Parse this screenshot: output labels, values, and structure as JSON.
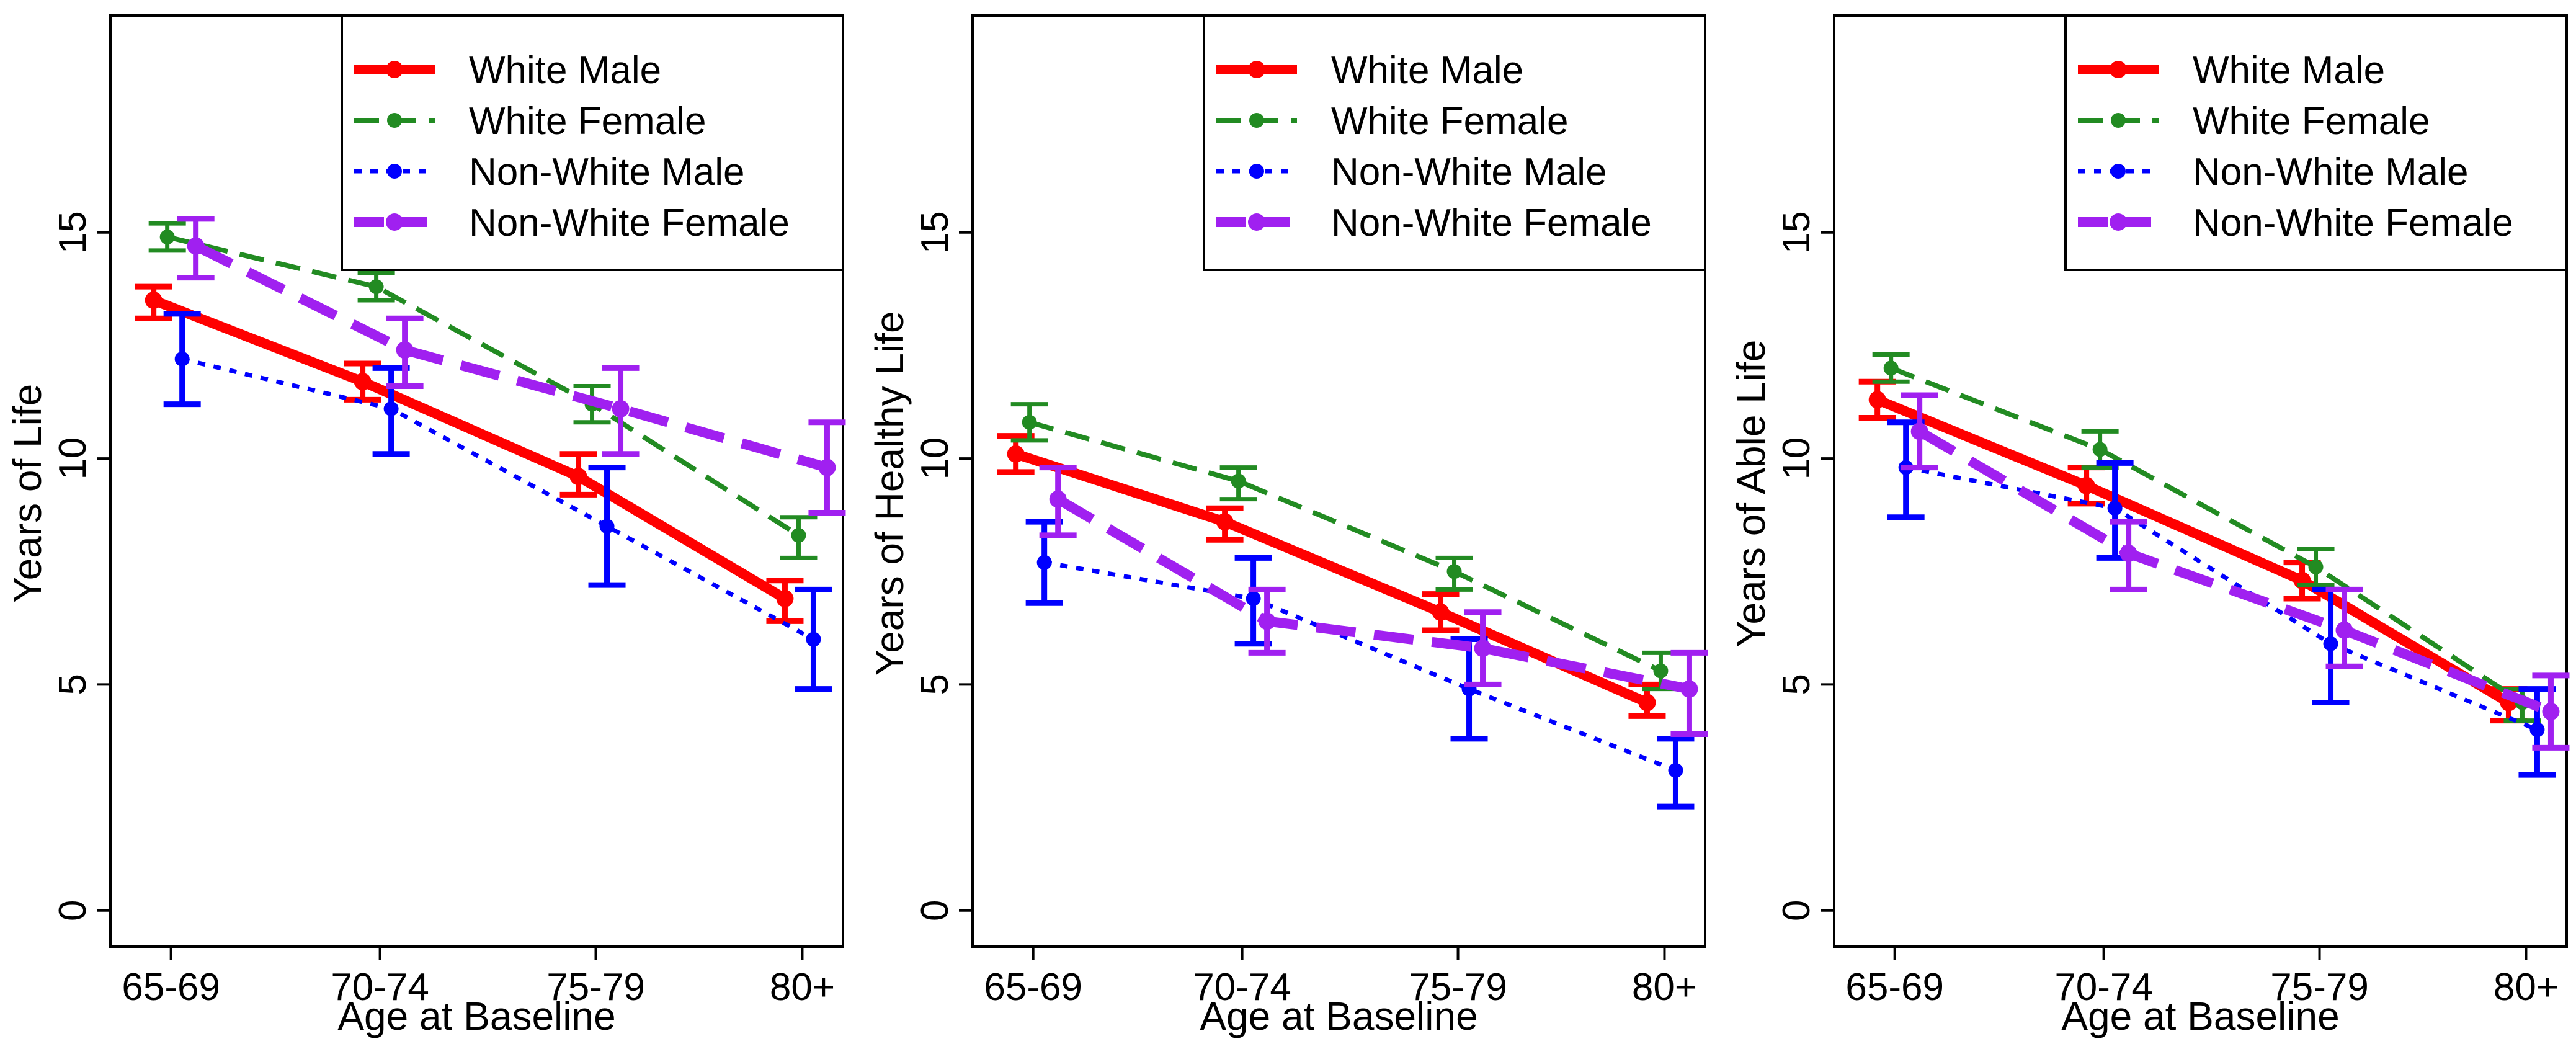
{
  "colors": {
    "white_male": "#ff0000",
    "white_female": "#228b22",
    "nonwhite_male": "#0000ff",
    "nonwhite_female": "#a020f0"
  },
  "chart_data": [
    {
      "type": "line",
      "title": "",
      "xlabel": "Age at Baseline",
      "ylabel": "Years of Life",
      "categories": [
        "65-69",
        "70-74",
        "75-79",
        "80+"
      ],
      "ylim": [
        -0.8,
        19.8
      ],
      "yticks": [
        "0",
        "5",
        "10",
        "15"
      ],
      "legend_position": "top-right",
      "series": [
        {
          "name": "White Male",
          "values": [
            13.5,
            11.7,
            9.6,
            6.9
          ],
          "ci_low": [
            13.1,
            11.3,
            9.2,
            6.4
          ],
          "ci_high": [
            13.8,
            12.1,
            10.1,
            7.3
          ]
        },
        {
          "name": "White Female",
          "values": [
            14.9,
            13.8,
            11.2,
            8.3
          ],
          "ci_low": [
            14.6,
            13.5,
            10.8,
            7.8
          ],
          "ci_high": [
            15.2,
            14.1,
            11.6,
            8.7
          ]
        },
        {
          "name": "Non-White Male",
          "values": [
            12.2,
            11.1,
            8.5,
            6.0
          ],
          "ci_low": [
            11.2,
            10.1,
            7.2,
            4.9
          ],
          "ci_high": [
            13.2,
            12.0,
            9.8,
            7.1
          ]
        },
        {
          "name": "Non-White Female",
          "values": [
            14.7,
            12.4,
            11.1,
            9.8
          ],
          "ci_low": [
            14.0,
            11.6,
            10.1,
            8.8
          ],
          "ci_high": [
            15.3,
            13.1,
            12.0,
            10.8
          ]
        }
      ]
    },
    {
      "type": "line",
      "title": "",
      "xlabel": "Age at Baseline",
      "ylabel": "Years of Healthy Life",
      "categories": [
        "65-69",
        "70-74",
        "75-79",
        "80+"
      ],
      "ylim": [
        -0.8,
        19.8
      ],
      "yticks": [
        "0",
        "5",
        "10",
        "15"
      ],
      "legend_position": "top-right",
      "series": [
        {
          "name": "White Male",
          "values": [
            10.1,
            8.6,
            6.6,
            4.6
          ],
          "ci_low": [
            9.7,
            8.2,
            6.2,
            4.3
          ],
          "ci_high": [
            10.5,
            8.9,
            7.0,
            5.0
          ]
        },
        {
          "name": "White Female",
          "values": [
            10.8,
            9.5,
            7.5,
            5.3
          ],
          "ci_low": [
            10.4,
            9.1,
            7.1,
            4.9
          ],
          "ci_high": [
            11.2,
            9.8,
            7.8,
            5.7
          ]
        },
        {
          "name": "Non-White Male",
          "values": [
            7.7,
            6.9,
            4.9,
            3.1
          ],
          "ci_low": [
            6.8,
            5.9,
            3.8,
            2.3
          ],
          "ci_high": [
            8.6,
            7.8,
            6.0,
            3.8
          ]
        },
        {
          "name": "Non-White Female",
          "values": [
            9.1,
            6.4,
            5.8,
            4.9
          ],
          "ci_low": [
            8.3,
            5.7,
            5.0,
            3.9
          ],
          "ci_high": [
            9.8,
            7.1,
            6.6,
            5.7
          ]
        }
      ]
    },
    {
      "type": "line",
      "title": "",
      "xlabel": "Age at Baseline",
      "ylabel": "Years of Able Life",
      "categories": [
        "65-69",
        "70-74",
        "75-79",
        "80+"
      ],
      "ylim": [
        -0.8,
        19.8
      ],
      "yticks": [
        "0",
        "5",
        "10",
        "15"
      ],
      "legend_position": "top-right",
      "series": [
        {
          "name": "White Male",
          "values": [
            11.3,
            9.4,
            7.3,
            4.6
          ],
          "ci_low": [
            10.9,
            9.0,
            6.9,
            4.2
          ],
          "ci_high": [
            11.7,
            9.8,
            7.7,
            4.9
          ]
        },
        {
          "name": "White Female",
          "values": [
            12.0,
            10.2,
            7.6,
            4.6
          ],
          "ci_low": [
            11.7,
            9.8,
            7.2,
            4.2
          ],
          "ci_high": [
            12.3,
            10.6,
            8.0,
            4.9
          ]
        },
        {
          "name": "Non-White Male",
          "values": [
            9.8,
            8.9,
            5.9,
            4.0
          ],
          "ci_low": [
            8.7,
            7.8,
            4.6,
            3.0
          ],
          "ci_high": [
            10.8,
            9.9,
            7.1,
            4.9
          ]
        },
        {
          "name": "Non-White Female",
          "values": [
            10.6,
            7.9,
            6.2,
            4.4
          ],
          "ci_low": [
            9.8,
            7.1,
            5.4,
            3.6
          ],
          "ci_high": [
            11.4,
            8.6,
            7.1,
            5.2
          ]
        }
      ]
    }
  ]
}
